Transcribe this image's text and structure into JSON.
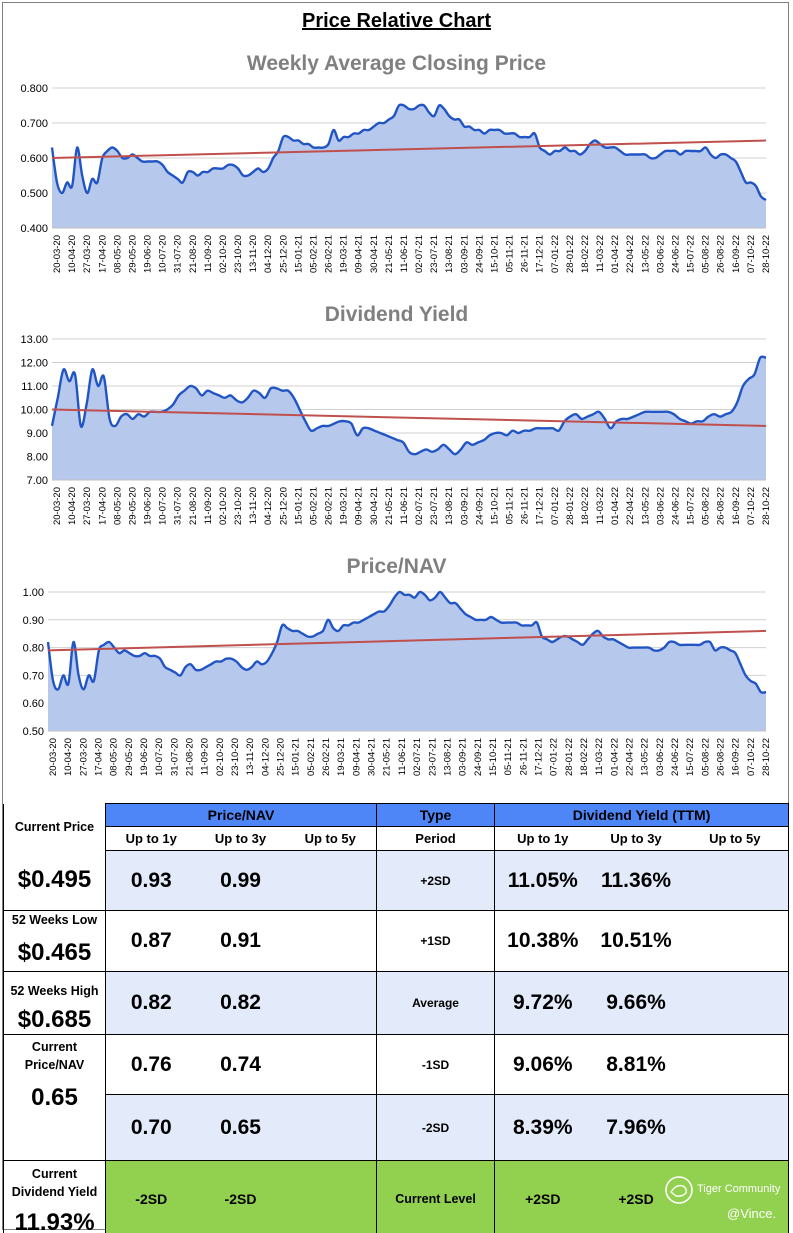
{
  "page": {
    "title": "Price Relative Chart"
  },
  "chart_data": [
    {
      "type": "area",
      "title": "Weekly Average Closing Price",
      "ylim": [
        0.4,
        0.8
      ],
      "yticks": [
        "0.400",
        "0.500",
        "0.600",
        "0.700",
        "0.800"
      ],
      "ytick_values": [
        0.4,
        0.5,
        0.6,
        0.7,
        0.8
      ],
      "x_tick_labels": [
        "20-03-20",
        "10-04-20",
        "27-03-20",
        "17-04-20",
        "08-05-20",
        "29-05-20",
        "19-06-20",
        "10-07-20",
        "31-07-20",
        "21-08-20",
        "11-09-20",
        "02-10-20",
        "23-10-20",
        "13-11-20",
        "04-12-20",
        "25-12-20",
        "15-01-21",
        "05-02-21",
        "26-02-21",
        "19-03-21",
        "09-04-21",
        "30-04-21",
        "21-05-21",
        "11-06-21",
        "02-07-21",
        "23-07-21",
        "13-08-21",
        "03-09-21",
        "24-09-21",
        "15-10-21",
        "05-11-21",
        "26-11-21",
        "17-12-21",
        "07-01-22",
        "28-01-22",
        "18-02-22",
        "11-03-22",
        "01-04-22",
        "22-04-22",
        "13-05-22",
        "03-06-22",
        "24-06-22",
        "15-07-22",
        "05-08-22",
        "26-08-22",
        "16-09-22",
        "07-10-22",
        "28-10-22"
      ],
      "values": [
        0.63,
        0.53,
        0.5,
        0.53,
        0.52,
        0.63,
        0.55,
        0.5,
        0.54,
        0.53,
        0.6,
        0.62,
        0.63,
        0.62,
        0.6,
        0.6,
        0.61,
        0.6,
        0.59,
        0.59,
        0.59,
        0.59,
        0.58,
        0.56,
        0.55,
        0.54,
        0.53,
        0.56,
        0.56,
        0.55,
        0.56,
        0.56,
        0.57,
        0.57,
        0.57,
        0.58,
        0.58,
        0.57,
        0.55,
        0.55,
        0.56,
        0.57,
        0.56,
        0.57,
        0.6,
        0.62,
        0.66,
        0.66,
        0.65,
        0.65,
        0.64,
        0.64,
        0.63,
        0.63,
        0.63,
        0.64,
        0.68,
        0.65,
        0.66,
        0.66,
        0.67,
        0.67,
        0.68,
        0.68,
        0.69,
        0.7,
        0.7,
        0.71,
        0.72,
        0.75,
        0.75,
        0.74,
        0.74,
        0.75,
        0.75,
        0.73,
        0.72,
        0.75,
        0.74,
        0.72,
        0.71,
        0.71,
        0.69,
        0.69,
        0.68,
        0.68,
        0.67,
        0.68,
        0.68,
        0.68,
        0.67,
        0.67,
        0.67,
        0.66,
        0.66,
        0.66,
        0.67,
        0.63,
        0.62,
        0.61,
        0.62,
        0.62,
        0.63,
        0.62,
        0.62,
        0.61,
        0.62,
        0.64,
        0.65,
        0.64,
        0.63,
        0.63,
        0.63,
        0.62,
        0.61,
        0.61,
        0.61,
        0.61,
        0.61,
        0.6,
        0.6,
        0.61,
        0.62,
        0.62,
        0.62,
        0.61,
        0.62,
        0.62,
        0.62,
        0.62,
        0.63,
        0.61,
        0.6,
        0.61,
        0.61,
        0.6,
        0.59,
        0.56,
        0.53,
        0.53,
        0.52,
        0.49,
        0.48
      ],
      "trend": [
        0.6,
        0.65
      ]
    },
    {
      "type": "area",
      "title": "Dividend Yield",
      "ylim": [
        7,
        13
      ],
      "yticks": [
        "7.00",
        "8.00",
        "9.00",
        "10.00",
        "11.00",
        "12.00",
        "13.00"
      ],
      "ytick_values": [
        7,
        8,
        9,
        10,
        11,
        12,
        13
      ],
      "x_tick_labels": [
        "20-03-20",
        "10-04-20",
        "27-03-20",
        "17-04-20",
        "08-05-20",
        "29-05-20",
        "19-06-20",
        "10-07-20",
        "31-07-20",
        "21-08-20",
        "11-09-20",
        "02-10-20",
        "23-10-20",
        "13-11-20",
        "04-12-20",
        "25-12-20",
        "15-01-21",
        "05-02-21",
        "26-02-21",
        "19-03-21",
        "09-04-21",
        "30-04-21",
        "21-05-21",
        "11-06-21",
        "02-07-21",
        "23-07-21",
        "13-08-21",
        "03-09-21",
        "24-09-21",
        "15-10-21",
        "05-11-21",
        "26-11-21",
        "17-12-21",
        "07-01-22",
        "28-01-22",
        "18-02-22",
        "11-03-22",
        "01-04-22",
        "22-04-22",
        "13-05-22",
        "03-06-22",
        "24-06-22",
        "15-07-22",
        "05-08-22",
        "26-08-22",
        "16-09-22",
        "07-10-22",
        "28-10-22"
      ],
      "values": [
        9.3,
        10.5,
        11.7,
        11.2,
        11.5,
        9.3,
        10.2,
        11.7,
        11.0,
        11.4,
        9.6,
        9.3,
        9.7,
        9.8,
        9.6,
        9.8,
        9.7,
        9.9,
        9.9,
        9.9,
        10.0,
        10.2,
        10.6,
        10.8,
        11.0,
        10.9,
        10.6,
        10.8,
        10.7,
        10.6,
        10.5,
        10.6,
        10.4,
        10.3,
        10.5,
        10.8,
        10.7,
        10.5,
        10.9,
        10.9,
        10.8,
        10.8,
        10.5,
        10.0,
        9.5,
        9.1,
        9.2,
        9.3,
        9.3,
        9.4,
        9.5,
        9.5,
        9.4,
        8.9,
        9.2,
        9.2,
        9.1,
        9.0,
        8.9,
        8.8,
        8.7,
        8.6,
        8.2,
        8.1,
        8.2,
        8.3,
        8.2,
        8.3,
        8.5,
        8.3,
        8.1,
        8.3,
        8.6,
        8.5,
        8.6,
        8.7,
        8.9,
        9.0,
        9.0,
        8.9,
        9.1,
        9.0,
        9.1,
        9.1,
        9.2,
        9.2,
        9.2,
        9.2,
        9.1,
        9.5,
        9.7,
        9.8,
        9.6,
        9.7,
        9.8,
        9.9,
        9.6,
        9.2,
        9.5,
        9.6,
        9.6,
        9.7,
        9.8,
        9.9,
        9.9,
        9.9,
        9.9,
        9.9,
        9.8,
        9.6,
        9.5,
        9.4,
        9.5,
        9.5,
        9.7,
        9.8,
        9.7,
        9.8,
        9.9,
        10.3,
        11.0,
        11.3,
        11.5,
        12.2,
        12.2
      ],
      "trend": [
        10.0,
        9.3
      ]
    },
    {
      "type": "area",
      "title": "Price/NAV",
      "ylim": [
        0.5,
        1.0
      ],
      "yticks": [
        "0.50",
        "0.60",
        "0.70",
        "0.80",
        "0.90",
        "1.00"
      ],
      "ytick_values": [
        0.5,
        0.6,
        0.7,
        0.8,
        0.9,
        1.0
      ],
      "x_tick_labels": [
        "20-03-20",
        "10-04-20",
        "27-03-20",
        "17-04-20",
        "08-05-20",
        "29-05-20",
        "19-06-20",
        "10-07-20",
        "31-07-20",
        "21-08-20",
        "11-09-20",
        "02-10-20",
        "23-10-20",
        "13-11-20",
        "04-12-20",
        "25-12-20",
        "15-01-21",
        "05-02-21",
        "26-02-21",
        "19-03-21",
        "09-04-21",
        "30-04-21",
        "21-05-21",
        "11-06-21",
        "02-07-21",
        "23-07-21",
        "13-08-21",
        "03-09-21",
        "24-09-21",
        "15-10-21",
        "05-11-21",
        "26-11-21",
        "17-12-21",
        "07-01-22",
        "28-01-22",
        "18-02-22",
        "11-03-22",
        "01-04-22",
        "22-04-22",
        "13-05-22",
        "03-06-22",
        "24-06-22",
        "15-07-22",
        "05-08-22",
        "26-08-22",
        "16-09-22",
        "07-10-22",
        "28-10-22"
      ],
      "values": [
        0.82,
        0.68,
        0.65,
        0.7,
        0.67,
        0.82,
        0.7,
        0.65,
        0.7,
        0.68,
        0.79,
        0.81,
        0.82,
        0.8,
        0.78,
        0.79,
        0.78,
        0.77,
        0.77,
        0.78,
        0.77,
        0.77,
        0.76,
        0.73,
        0.72,
        0.71,
        0.7,
        0.73,
        0.74,
        0.72,
        0.72,
        0.73,
        0.74,
        0.75,
        0.75,
        0.76,
        0.76,
        0.75,
        0.73,
        0.72,
        0.73,
        0.75,
        0.74,
        0.75,
        0.78,
        0.82,
        0.88,
        0.87,
        0.86,
        0.86,
        0.85,
        0.84,
        0.84,
        0.85,
        0.86,
        0.9,
        0.87,
        0.86,
        0.88,
        0.88,
        0.89,
        0.89,
        0.9,
        0.91,
        0.92,
        0.93,
        0.93,
        0.95,
        0.98,
        1.0,
        0.99,
        0.99,
        0.98,
        1.0,
        0.99,
        0.97,
        0.98,
        1.0,
        0.98,
        0.96,
        0.96,
        0.94,
        0.92,
        0.91,
        0.9,
        0.9,
        0.9,
        0.91,
        0.9,
        0.89,
        0.89,
        0.89,
        0.89,
        0.88,
        0.88,
        0.88,
        0.89,
        0.84,
        0.83,
        0.82,
        0.83,
        0.84,
        0.84,
        0.83,
        0.82,
        0.81,
        0.83,
        0.85,
        0.86,
        0.84,
        0.83,
        0.83,
        0.82,
        0.81,
        0.8,
        0.8,
        0.8,
        0.8,
        0.8,
        0.79,
        0.79,
        0.8,
        0.82,
        0.82,
        0.81,
        0.81,
        0.81,
        0.81,
        0.81,
        0.82,
        0.82,
        0.79,
        0.8,
        0.8,
        0.79,
        0.78,
        0.74,
        0.7,
        0.68,
        0.67,
        0.64,
        0.64
      ],
      "trend": [
        0.79,
        0.86
      ]
    }
  ],
  "table": {
    "left": {
      "current_price_label": "Current Price",
      "current_price_value": "$0.495",
      "low52_label": "52 Weeks Low",
      "low52_value": "$0.465",
      "high52_label": "52 Weeks High",
      "high52_value": "$0.685",
      "current_pnav_label": "Current Price/NAV",
      "current_pnav_value": "0.65",
      "current_dy_label": "Current Dividend Yield",
      "current_dy_value": "11.93%"
    },
    "pnav_header": "Price/NAV",
    "type_header": "Type",
    "dy_header": "Dividend Yield (TTM)",
    "periods": [
      "Up to 1y",
      "Up to 3y",
      "Up to 5y"
    ],
    "period_label": "Period",
    "rows": [
      {
        "type": "+2SD",
        "pnav": [
          "0.93",
          "0.99",
          ""
        ],
        "dy": [
          "11.05%",
          "11.36%",
          ""
        ]
      },
      {
        "type": "+1SD",
        "pnav": [
          "0.87",
          "0.91",
          ""
        ],
        "dy": [
          "10.38%",
          "10.51%",
          ""
        ]
      },
      {
        "type": "Average",
        "pnav": [
          "0.82",
          "0.82",
          ""
        ],
        "dy": [
          "9.72%",
          "9.66%",
          ""
        ]
      },
      {
        "type": "-1SD",
        "pnav": [
          "0.76",
          "0.74",
          ""
        ],
        "dy": [
          "9.06%",
          "8.81%",
          ""
        ]
      },
      {
        "type": "-2SD",
        "pnav": [
          "0.70",
          "0.65",
          ""
        ],
        "dy": [
          "8.39%",
          "7.96%",
          ""
        ]
      }
    ],
    "current_level": {
      "label": "Current Level",
      "pnav": [
        "-2SD",
        "-2SD",
        ""
      ],
      "dy": [
        "+2SD",
        "+2SD",
        ""
      ]
    }
  },
  "watermark": {
    "brand": "Tiger Community",
    "handle": "@Vince."
  },
  "colors": {
    "line": "#2255c4",
    "area": "#b6c8ec",
    "trend": "#c0504d",
    "header_blue": "#4f86f7",
    "band": "#e3ebfa",
    "green": "#92d050"
  }
}
